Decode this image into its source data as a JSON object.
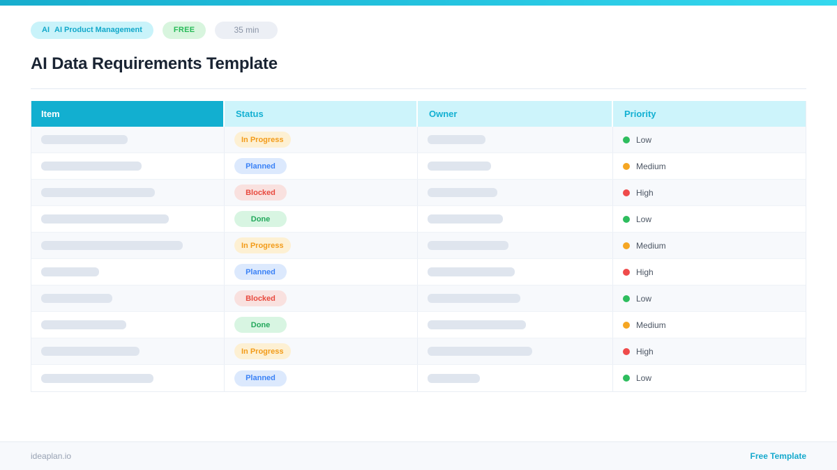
{
  "topbar": {
    "gradient_start": "#17adcd",
    "gradient_end": "#35d8ee"
  },
  "header": {
    "badges": {
      "category": {
        "icon_text": "AI",
        "label": "AI Product Management"
      },
      "free": {
        "label": "FREE"
      },
      "duration": {
        "label": "35 min"
      }
    },
    "title": "AI Data Requirements Template"
  },
  "table": {
    "columns": {
      "item": "Item",
      "status": "Status",
      "owner": "Owner",
      "priority": "Priority"
    },
    "header_colors": {
      "item_bg": "#12afd0",
      "item_fg": "#ffffff",
      "other_bg": "#cdf4fb",
      "other_fg": "#13b0d2"
    },
    "rows": [
      {
        "item_placeholder_width": 124,
        "status": "In Progress",
        "owner_placeholder_width": 83,
        "priority": "Low"
      },
      {
        "item_placeholder_width": 144,
        "status": "Planned",
        "owner_placeholder_width": 91,
        "priority": "Medium"
      },
      {
        "item_placeholder_width": 163,
        "status": "Blocked",
        "owner_placeholder_width": 100,
        "priority": "High"
      },
      {
        "item_placeholder_width": 183,
        "status": "Done",
        "owner_placeholder_width": 108,
        "priority": "Low"
      },
      {
        "item_placeholder_width": 203,
        "status": "In Progress",
        "owner_placeholder_width": 116,
        "priority": "Medium"
      },
      {
        "item_placeholder_width": 83,
        "status": "Planned",
        "owner_placeholder_width": 125,
        "priority": "High"
      },
      {
        "item_placeholder_width": 102,
        "status": "Blocked",
        "owner_placeholder_width": 133,
        "priority": "Low"
      },
      {
        "item_placeholder_width": 122,
        "status": "Done",
        "owner_placeholder_width": 141,
        "priority": "Medium"
      },
      {
        "item_placeholder_width": 141,
        "status": "In Progress",
        "owner_placeholder_width": 150,
        "priority": "High"
      },
      {
        "item_placeholder_width": 161,
        "status": "Planned",
        "owner_placeholder_width": 75,
        "priority": "Low"
      }
    ],
    "status_styles": {
      "In Progress": {
        "bg": "#fdf0d3",
        "fg": "#f29b19"
      },
      "Planned": {
        "bg": "#dce9fd",
        "fg": "#3b82f6"
      },
      "Blocked": {
        "bg": "#f9e1df",
        "fg": "#e84a3f"
      },
      "Done": {
        "bg": "#d8f5e2",
        "fg": "#23a85c"
      }
    },
    "priority_styles": {
      "Low": {
        "dot_color": "#2ebd5e"
      },
      "Medium": {
        "dot_color": "#f5a623"
      },
      "High": {
        "dot_color": "#ef4b4b"
      }
    }
  },
  "footer": {
    "site": "ideaplan.io",
    "link_label": "Free Template"
  }
}
